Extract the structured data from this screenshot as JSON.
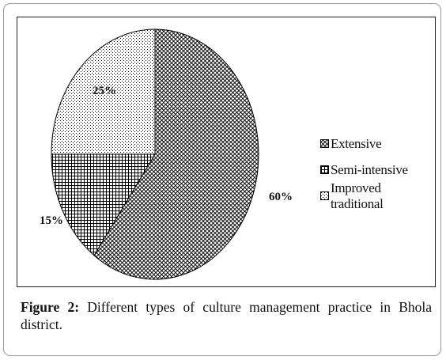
{
  "chart_data": {
    "type": "pie",
    "title": "",
    "slices": [
      {
        "label": "Extensive",
        "value": 60,
        "data_label": "60%",
        "pattern": "diamond"
      },
      {
        "label": "Semi-intensive",
        "value": 15,
        "data_label": "15%",
        "pattern": "grid"
      },
      {
        "label": "Improved traditional",
        "value": 25,
        "data_label": "25%",
        "pattern": "dots"
      }
    ],
    "legend_position": "right",
    "colors": {
      "ink": "#000000",
      "background": "#ffffff"
    }
  },
  "caption": {
    "label": "Figure 2:",
    "text": " Different types of culture management practice in Bhola district."
  }
}
